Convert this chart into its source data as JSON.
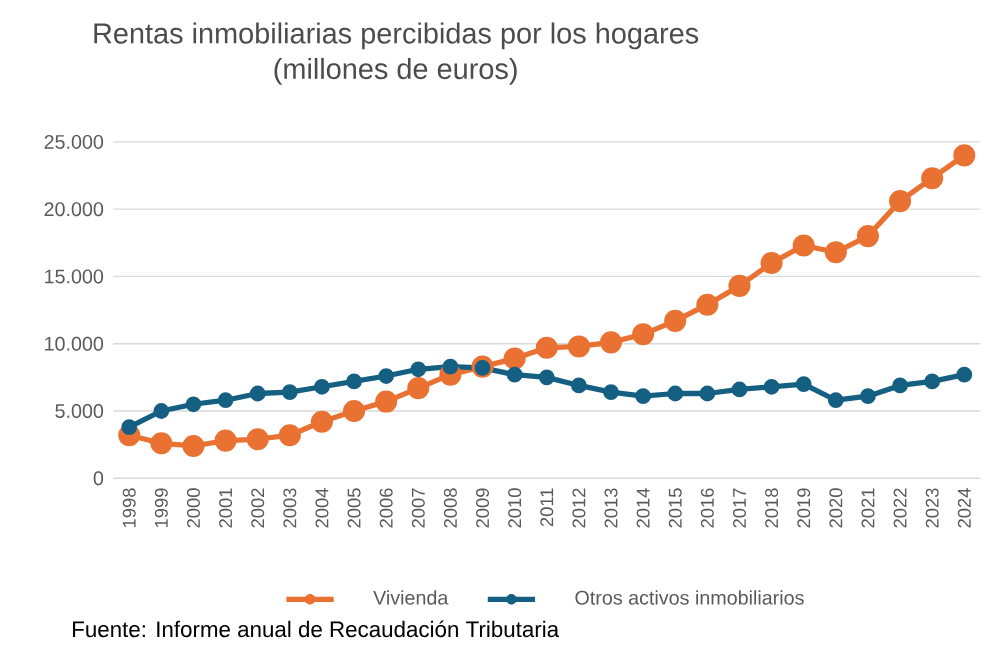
{
  "chart_data": {
    "type": "line",
    "title": "Rentas inmobiliarias percibidas por los hogares",
    "subtitle": "(millones de euros)",
    "categories": [
      "1998",
      "1999",
      "2000",
      "2001",
      "2002",
      "2003",
      "2004",
      "2005",
      "2006",
      "2007",
      "2008",
      "2009",
      "2010",
      "2011",
      "2012",
      "2013",
      "2014",
      "2015",
      "2016",
      "2017",
      "2018",
      "2019",
      "2020",
      "2021",
      "2022",
      "2023",
      "2024"
    ],
    "series": [
      {
        "name": "Vivienda",
        "color": "#e97132",
        "values": [
          3200,
          2600,
          2400,
          2800,
          2900,
          3200,
          4200,
          5000,
          5700,
          6700,
          7700,
          8300,
          8900,
          9700,
          9800,
          10100,
          10700,
          11700,
          12900,
          14300,
          16000,
          17300,
          16800,
          18000,
          20600,
          22300,
          24000
        ]
      },
      {
        "name": "Otros activos inmobiliarios",
        "color": "#156082",
        "values": [
          3800,
          5000,
          5500,
          5800,
          6300,
          6400,
          6800,
          7200,
          7600,
          8100,
          8300,
          8200,
          7700,
          7500,
          6900,
          6400,
          6100,
          6300,
          6300,
          6600,
          6800,
          7000,
          5800,
          6100,
          6900,
          7200,
          7700
        ]
      }
    ],
    "ylim": [
      0,
      25000
    ],
    "yticks": [
      0,
      {
        "value": 5000,
        "label": "5.000"
      },
      {
        "value": 10000,
        "label": "10.000"
      },
      {
        "value": 15000,
        "label": "15.000"
      },
      {
        "value": 20000,
        "label": "20.000"
      },
      {
        "value": 25000,
        "label": "25.000"
      }
    ],
    "grid": "y",
    "legend": "bottom",
    "marker": "circle",
    "line_style": "solid",
    "annotations": [
      "Fuente: Informe anual de Recaudación Tributaria"
    ]
  }
}
